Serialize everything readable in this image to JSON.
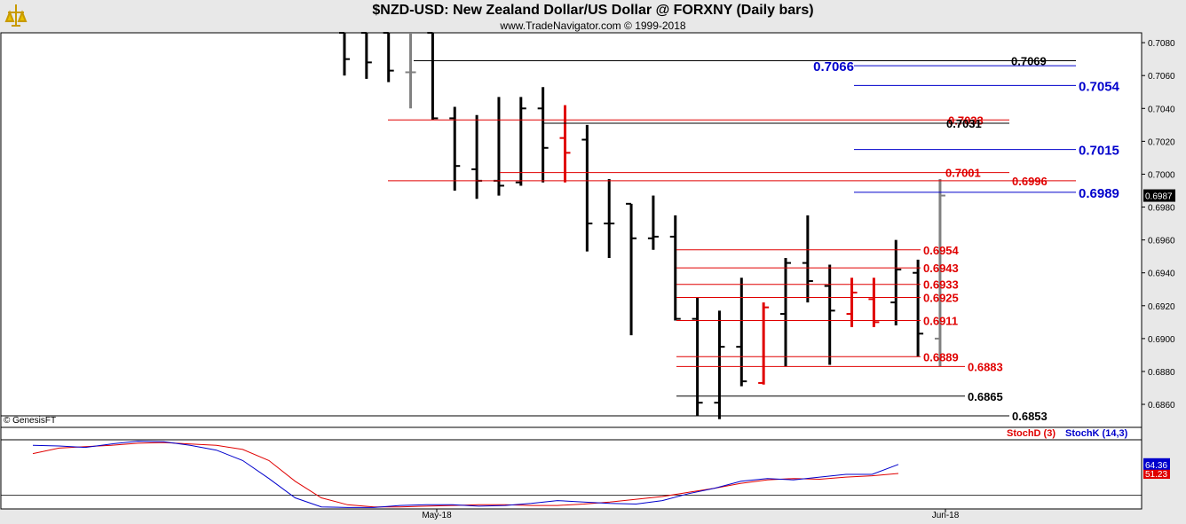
{
  "header": {
    "title": "$NZD-USD:  New Zealand Dollar/US Dollar @ FORXNY  (Daily bars)",
    "subtitle": "www.TradeNavigator.com © 1999-2018",
    "credit": "© GenesisFT"
  },
  "colors": {
    "background": "#ffffff",
    "up_bar": "#000000",
    "down_bar": "#e00000",
    "neutral_bar": "#808080",
    "green_bar": "#00cc00",
    "red_level": "#e00000",
    "blue_level": "#0000cc",
    "black_level": "#000000",
    "stochD": "#e00000",
    "stochK": "#0000cc"
  },
  "chart_data": [
    {
      "type": "ohlc",
      "title": "$NZD-USD:  New Zealand Dollar/US Dollar @ FORXNY  (Daily bars)",
      "ylim": [
        0.6846,
        0.7086
      ],
      "yticks": [
        "0.6860",
        "0.6880",
        "0.6900",
        "0.6920",
        "0.6940",
        "0.6960",
        "0.6980",
        "0.7000",
        "0.7020",
        "0.7040",
        "0.7060",
        "0.7080"
      ],
      "last_price": "0.6987",
      "xticks": [
        "May-18",
        "Jun-18"
      ],
      "bars": [
        {
          "o": 0.7086,
          "h": 0.7086,
          "l": 0.706,
          "c": 0.707,
          "color": "black"
        },
        {
          "o": 0.7086,
          "h": 0.7086,
          "l": 0.7058,
          "c": 0.7068,
          "color": "black"
        },
        {
          "o": 0.7086,
          "h": 0.7086,
          "l": 0.7056,
          "c": 0.7063,
          "color": "black"
        },
        {
          "o": 0.7062,
          "h": 0.7086,
          "l": 0.704,
          "c": 0.7062,
          "color": "gray"
        },
        {
          "o": 0.7086,
          "h": 0.7086,
          "l": 0.7033,
          "c": 0.7034,
          "color": "black"
        },
        {
          "o": 0.7034,
          "h": 0.7041,
          "l": 0.699,
          "c": 0.7005,
          "color": "black"
        },
        {
          "o": 0.7003,
          "h": 0.7036,
          "l": 0.6985,
          "c": 0.6996,
          "color": "black"
        },
        {
          "o": 0.6996,
          "h": 0.7047,
          "l": 0.6987,
          "c": 0.6993,
          "color": "black"
        },
        {
          "o": 0.6995,
          "h": 0.7047,
          "l": 0.6993,
          "c": 0.704,
          "color": "black"
        },
        {
          "o": 0.704,
          "h": 0.7053,
          "l": 0.6995,
          "c": 0.7016,
          "color": "black"
        },
        {
          "o": 0.7022,
          "h": 0.7042,
          "l": 0.6995,
          "c": 0.7013,
          "color": "red"
        },
        {
          "o": 0.7021,
          "h": 0.703,
          "l": 0.6953,
          "c": 0.697,
          "color": "black"
        },
        {
          "o": 0.697,
          "h": 0.6997,
          "l": 0.6949,
          "c": 0.697,
          "color": "black"
        },
        {
          "o": 0.6982,
          "h": 0.6982,
          "l": 0.6902,
          "c": 0.6961,
          "color": "black"
        },
        {
          "o": 0.6961,
          "h": 0.6987,
          "l": 0.6954,
          "c": 0.6962,
          "color": "black"
        },
        {
          "o": 0.6962,
          "h": 0.6975,
          "l": 0.6911,
          "c": 0.6912,
          "color": "black"
        },
        {
          "o": 0.6912,
          "h": 0.6925,
          "l": 0.6853,
          "c": 0.6861,
          "color": "black"
        },
        {
          "o": 0.6861,
          "h": 0.6917,
          "l": 0.6851,
          "c": 0.6895,
          "color": "black"
        },
        {
          "o": 0.6895,
          "h": 0.6937,
          "l": 0.6871,
          "c": 0.6874,
          "color": "black"
        },
        {
          "o": 0.6873,
          "h": 0.6922,
          "l": 0.6872,
          "c": 0.6919,
          "color": "red"
        },
        {
          "o": 0.6915,
          "h": 0.6949,
          "l": 0.6883,
          "c": 0.6946,
          "color": "black"
        },
        {
          "o": 0.6946,
          "h": 0.6975,
          "l": 0.6922,
          "c": 0.6935,
          "color": "black"
        },
        {
          "o": 0.6932,
          "h": 0.6945,
          "l": 0.6884,
          "c": 0.6917,
          "color": "black"
        },
        {
          "o": 0.6915,
          "h": 0.6937,
          "l": 0.6907,
          "c": 0.6928,
          "color": "red"
        },
        {
          "o": 0.6924,
          "h": 0.6937,
          "l": 0.6907,
          "c": 0.691,
          "color": "red"
        },
        {
          "o": 0.6922,
          "h": 0.696,
          "l": 0.6908,
          "c": 0.6942,
          "color": "black"
        },
        {
          "o": 0.694,
          "h": 0.6948,
          "l": 0.6889,
          "c": 0.6903,
          "color": "black"
        },
        {
          "o": 0.69,
          "h": 0.6997,
          "l": 0.6883,
          "c": 0.6987,
          "color": "gray"
        }
      ],
      "levels": [
        {
          "value": 0.7069,
          "label": "0.7069",
          "color": "black"
        },
        {
          "value": 0.7066,
          "label": "0.7066",
          "color": "blue"
        },
        {
          "value": 0.7054,
          "label": "0.7054",
          "color": "blue"
        },
        {
          "value": 0.7033,
          "label": "0.7033",
          "color": "red"
        },
        {
          "value": 0.7031,
          "label": "0.7031",
          "color": "black"
        },
        {
          "value": 0.7015,
          "label": "0.7015",
          "color": "blue"
        },
        {
          "value": 0.7001,
          "label": "0.7001",
          "color": "red"
        },
        {
          "value": 0.6996,
          "label": "0.6996",
          "color": "red"
        },
        {
          "value": 0.6989,
          "label": "0.6989",
          "color": "blue"
        },
        {
          "value": 0.6954,
          "label": "0.6954",
          "color": "red"
        },
        {
          "value": 0.6943,
          "label": "0.6943",
          "color": "red"
        },
        {
          "value": 0.6933,
          "label": "0.6933",
          "color": "red"
        },
        {
          "value": 0.6925,
          "label": "0.6925",
          "color": "red"
        },
        {
          "value": 0.6911,
          "label": "0.6911",
          "color": "red"
        },
        {
          "value": 0.6889,
          "label": "0.6889",
          "color": "red"
        },
        {
          "value": 0.6883,
          "label": "0.6883",
          "color": "red"
        },
        {
          "value": 0.6865,
          "label": "0.6865",
          "color": "black"
        },
        {
          "value": 0.6853,
          "label": "0.6853",
          "color": "black"
        }
      ]
    },
    {
      "type": "line",
      "ylim": [
        0,
        100
      ],
      "series": [
        {
          "name": "StochD (3)",
          "color": "red",
          "last_label": "51.23",
          "values": [
            80,
            88,
            90,
            92,
            95,
            96,
            94,
            92,
            86,
            70,
            40,
            16,
            6,
            3,
            3,
            4,
            5,
            6,
            6,
            5,
            5,
            7,
            10,
            14,
            18,
            24,
            30,
            37,
            42,
            44,
            43,
            46,
            48,
            51.23
          ]
        },
        {
          "name": "StochK (14,3)",
          "color": "blue",
          "last_label": "64.36",
          "values": [
            92,
            91,
            89,
            94,
            98,
            97,
            92,
            85,
            70,
            44,
            16,
            3,
            2,
            2,
            5,
            6,
            6,
            4,
            5,
            8,
            12,
            10,
            8,
            7,
            12,
            22,
            30,
            40,
            44,
            42,
            46,
            50,
            50,
            64.36
          ]
        }
      ],
      "xticks": [
        "May-18",
        "Jun-18"
      ]
    }
  ]
}
